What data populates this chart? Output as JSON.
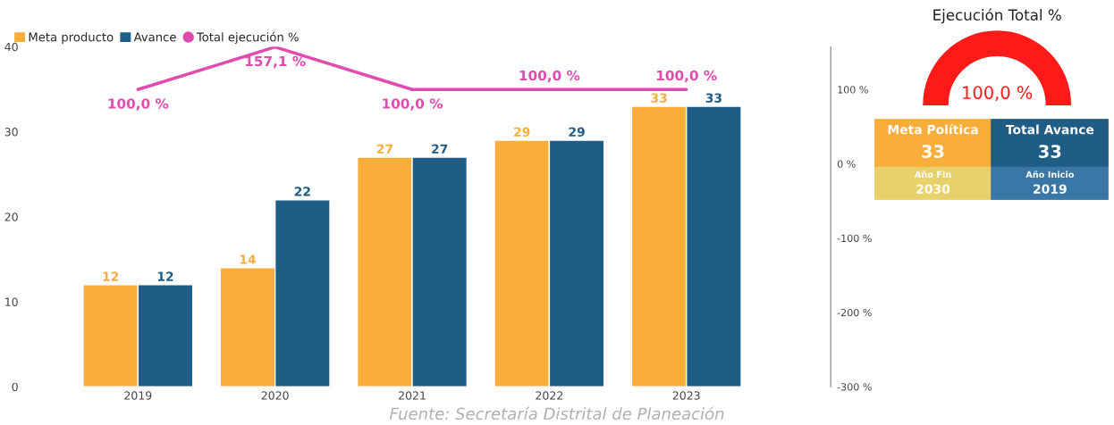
{
  "chart_data": [
    {
      "type": "bar",
      "categories": [
        "2019",
        "2020",
        "2021",
        "2022",
        "2023"
      ],
      "series": [
        {
          "name": "Meta producto",
          "color": "#f9ae3b",
          "values": [
            12,
            14,
            27,
            29,
            33
          ],
          "value_labels": [
            "12",
            "14",
            "27",
            "29",
            "33"
          ]
        },
        {
          "name": "Avance",
          "color": "#1f5d87",
          "values": [
            12,
            22,
            27,
            29,
            33
          ],
          "value_labels": [
            "12",
            "22",
            "27",
            "29",
            "33"
          ]
        },
        {
          "name": "Total ejecución %",
          "type": "line",
          "axis": "y2",
          "color": "#e04bb0",
          "values": [
            100,
            157.1,
            100,
            100,
            100
          ],
          "value_labels": [
            "100,0 %",
            "157,1 %",
            "100,0 %",
            "100,0 %",
            "100,0 %"
          ]
        }
      ],
      "ylim": [
        0,
        40
      ],
      "yticks": [
        0,
        10,
        20,
        30,
        40
      ],
      "y2lim": [
        -300,
        157.5
      ],
      "y2ticks": [
        {
          "value": 100,
          "label": "100 %"
        },
        {
          "value": 0,
          "label": "0 %"
        },
        {
          "value": -100,
          "label": "-100 %"
        },
        {
          "value": -200,
          "label": "-200 %"
        },
        {
          "value": -300,
          "label": "-300 %"
        }
      ],
      "legend": "top left",
      "grid": false,
      "marker": "none",
      "line_style": "solid",
      "annotations": [
        "Fuente: Secretaría Distrital de Planeación"
      ]
    },
    {
      "type": "pie",
      "title": "Ejecución Total %",
      "categories": [
        null
      ],
      "values": [
        100
      ],
      "colors": [
        "#ff1a1a"
      ],
      "value_labels": [
        "100,0 %"
      ]
    },
    {
      "type": "other",
      "categories": [
        "Meta Política",
        "Total Avance",
        "Año Fin",
        "Año Inicio"
      ],
      "values": [
        33,
        33,
        2030,
        2019
      ],
      "value_labels": [
        "33",
        "33",
        "2030",
        "2019"
      ],
      "colors": [
        "#f9ae3b",
        "#1f5d87",
        "#e8d16a",
        "#3a77a6"
      ]
    }
  ]
}
